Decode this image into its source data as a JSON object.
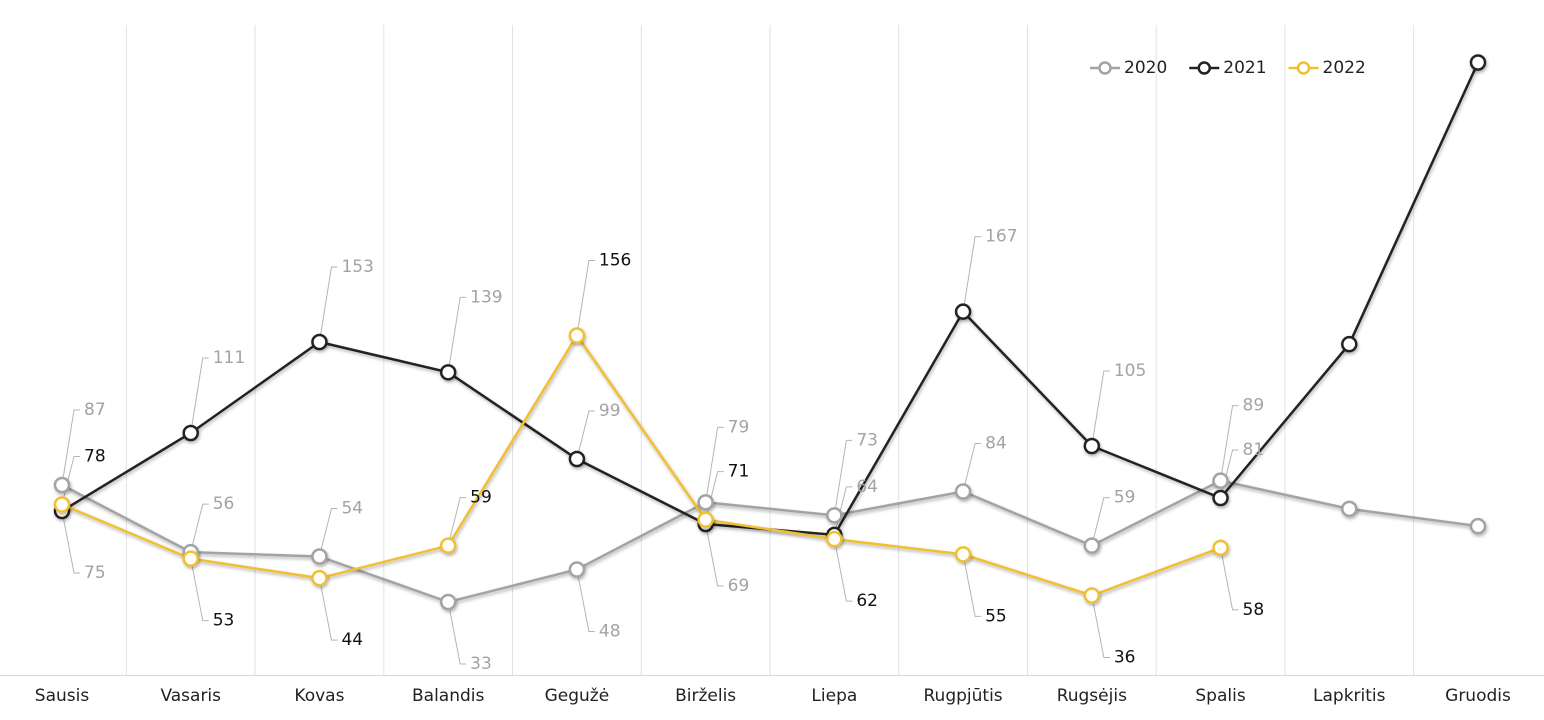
{
  "chart_data": {
    "type": "line",
    "categories": [
      "Sausis",
      "Vasaris",
      "Kovas",
      "Balandis",
      "Gegužė",
      "Birželis",
      "Liepa",
      "Rugpjūtis",
      "Rugsėjis",
      "Spalis",
      "Lapkritis",
      "Gruodis"
    ],
    "ylim": [
      0,
      300
    ],
    "legend": "top-right",
    "series": [
      {
        "name": "2020",
        "color": "#a3a3a3",
        "label_color": "#a3a3a3",
        "values": [
          87,
          56,
          54,
          33,
          48,
          79,
          73,
          84,
          59,
          89,
          76,
          68
        ],
        "value_labels": [
          "87",
          "56",
          "54",
          "33",
          "48",
          "79",
          "73",
          "84",
          "59",
          "89",
          null,
          null
        ]
      },
      {
        "name": "2021",
        "color": "#222222",
        "label_color": "#a3a3a3",
        "values": [
          75,
          111,
          153,
          139,
          99,
          69,
          64,
          167,
          105,
          81,
          152,
          282
        ],
        "value_labels": [
          "75",
          "111",
          "153",
          "139",
          "99",
          "69",
          "64",
          "167",
          "105",
          "81",
          null,
          null
        ]
      },
      {
        "name": "2022",
        "color": "#f2bf30",
        "label_color": "#111111",
        "values": [
          78,
          53,
          44,
          59,
          156,
          71,
          62,
          55,
          36,
          58,
          null,
          null
        ],
        "value_labels": [
          "78",
          "53",
          "44",
          "59",
          "156",
          "71",
          "62",
          "55",
          "36",
          "58",
          null,
          null
        ]
      }
    ]
  }
}
